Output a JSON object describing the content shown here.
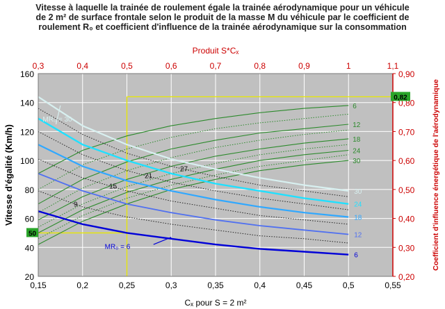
{
  "chart_data": {
    "type": "line",
    "title_lines": [
      "Vitesse à laquelle la trainée de roulement égale la trainée aérodynamique pour un véhicule",
      "de 2 m² de surface frontale selon le produit de la masse M du véhicule par le coefficient de",
      "roulement R₀ et coefficient d'influence de la trainée aérodynamique sur la consommation"
    ],
    "top_axis_title": "Produit S*Cₓ",
    "xlabel": "Cₓ pour S = 2 m²",
    "ylabel": "Vitesse d'égalité (Km/h)",
    "y2label": "Coefficient d'influence énergétique de l'aérodynamique",
    "xlim": [
      0.15,
      0.55
    ],
    "ylim": [
      20,
      160
    ],
    "y2lim": [
      0.2,
      0.9
    ],
    "x_ticks": [
      "0,15",
      "0,2",
      "0,25",
      "0,3",
      "0,35",
      "0,4",
      "0,45",
      "0,5",
      "0,55"
    ],
    "y_ticks": [
      "20",
      "40",
      "60",
      "80",
      "100",
      "120",
      "140",
      "160"
    ],
    "top_ticks": [
      "0,3",
      "0,4",
      "0,5",
      "0,6",
      "0,7",
      "0,8",
      "0,9",
      "1",
      "1,1"
    ],
    "y2_ticks": [
      "0,20",
      "0,30",
      "0,40",
      "0,50",
      "0,60",
      "0,70",
      "0,80",
      "0,90"
    ],
    "grid": true,
    "colors": {
      "plot_bg": "#c0c0c0",
      "grid": "#ffffff",
      "green": "#2c8a2c",
      "red": "#cc0000",
      "marker_yellow": "#e8e800",
      "badge_green": "#2aa52a"
    },
    "speed_series": [
      {
        "name": "MR₀ = 30",
        "label": "30",
        "color": "#d8f0f0",
        "width": 2.2,
        "x": [
          0.15,
          0.2,
          0.25,
          0.3,
          0.35,
          0.4,
          0.45,
          0.5
        ],
        "y": [
          144,
          124,
          111,
          101,
          94,
          88,
          83,
          79
        ]
      },
      {
        "name": "24",
        "label": "24",
        "color": "#20e0ff",
        "width": 2.4,
        "x": [
          0.15,
          0.2,
          0.25,
          0.3,
          0.35,
          0.4,
          0.45,
          0.5
        ],
        "y": [
          129,
          111,
          100,
          91,
          84,
          79,
          74,
          70
        ]
      },
      {
        "name": "18",
        "label": "18",
        "color": "#30a8ff",
        "width": 2.2,
        "x": [
          0.15,
          0.2,
          0.25,
          0.3,
          0.35,
          0.4,
          0.45,
          0.5
        ],
        "y": [
          111,
          96,
          86,
          79,
          73,
          68,
          64,
          61
        ]
      },
      {
        "name": "12",
        "label": "12",
        "color": "#5070f0",
        "width": 1.8,
        "x": [
          0.15,
          0.2,
          0.25,
          0.3,
          0.35,
          0.4,
          0.45,
          0.5
        ],
        "y": [
          91,
          79,
          70,
          64,
          59,
          55,
          52,
          49
        ]
      },
      {
        "name": "MR₀ = 6",
        "label": "6",
        "color": "#0000d8",
        "width": 2.4,
        "x": [
          0.15,
          0.2,
          0.25,
          0.3,
          0.35,
          0.4,
          0.45,
          0.5
        ],
        "y": [
          65,
          56,
          50,
          46,
          42,
          39,
          37,
          35
        ]
      }
    ],
    "dotted_series": [
      {
        "label": "27",
        "x": [
          0.15,
          0.2,
          0.25,
          0.3,
          0.35,
          0.4,
          0.45,
          0.5
        ],
        "y": [
          136,
          118,
          105,
          96,
          89,
          83,
          79,
          75
        ]
      },
      {
        "label": "21",
        "x": [
          0.15,
          0.2,
          0.25,
          0.3,
          0.35,
          0.4,
          0.45,
          0.5
        ],
        "y": [
          120,
          104,
          93,
          85,
          79,
          74,
          70,
          66
        ]
      },
      {
        "label": "15",
        "x": [
          0.15,
          0.2,
          0.25,
          0.3,
          0.35,
          0.4,
          0.45,
          0.5
        ],
        "y": [
          101,
          88,
          79,
          72,
          67,
          62,
          59,
          56
        ]
      },
      {
        "label": "9",
        "x": [
          0.15,
          0.2,
          0.25,
          0.3,
          0.35,
          0.4,
          0.45,
          0.5
        ],
        "y": [
          79,
          68,
          61,
          56,
          52,
          48,
          46,
          43
        ]
      }
    ],
    "influence_series": [
      {
        "label": "6",
        "x": [
          0.15,
          0.2,
          0.25,
          0.3,
          0.35,
          0.4,
          0.45,
          0.5
        ],
        "y2": [
          0.555,
          0.635,
          0.685,
          0.72,
          0.745,
          0.765,
          0.78,
          0.79
        ]
      },
      {
        "label": "12",
        "x": [
          0.15,
          0.2,
          0.25,
          0.3,
          0.35,
          0.4,
          0.45,
          0.5
        ],
        "y2": [
          0.45,
          0.535,
          0.595,
          0.64,
          0.67,
          0.695,
          0.71,
          0.725
        ]
      },
      {
        "label": "18",
        "x": [
          0.15,
          0.2,
          0.25,
          0.3,
          0.35,
          0.4,
          0.45,
          0.5
        ],
        "y2": [
          0.395,
          0.475,
          0.535,
          0.58,
          0.615,
          0.64,
          0.66,
          0.675
        ]
      },
      {
        "label": "24",
        "x": [
          0.15,
          0.2,
          0.25,
          0.3,
          0.35,
          0.4,
          0.45,
          0.5
        ],
        "y2": [
          0.35,
          0.43,
          0.49,
          0.535,
          0.57,
          0.6,
          0.62,
          0.635
        ]
      },
      {
        "label": "30",
        "x": [
          0.15,
          0.2,
          0.25,
          0.3,
          0.35,
          0.4,
          0.45,
          0.5
        ],
        "y2": [
          0.31,
          0.39,
          0.45,
          0.5,
          0.535,
          0.565,
          0.585,
          0.6
        ]
      }
    ],
    "influence_dotted": [
      {
        "x": [
          0.15,
          0.2,
          0.25,
          0.3,
          0.35,
          0.4,
          0.45,
          0.5
        ],
        "y2": [
          0.5,
          0.585,
          0.64,
          0.68,
          0.71,
          0.73,
          0.745,
          0.76
        ]
      },
      {
        "x": [
          0.15,
          0.2,
          0.25,
          0.3,
          0.35,
          0.4,
          0.45,
          0.5
        ],
        "y2": [
          0.42,
          0.505,
          0.565,
          0.61,
          0.645,
          0.67,
          0.69,
          0.705
        ]
      },
      {
        "x": [
          0.15,
          0.2,
          0.25,
          0.3,
          0.35,
          0.4,
          0.45,
          0.5
        ],
        "y2": [
          0.37,
          0.45,
          0.51,
          0.555,
          0.59,
          0.62,
          0.64,
          0.655
        ]
      },
      {
        "x": [
          0.15,
          0.2,
          0.25,
          0.3,
          0.35,
          0.4,
          0.45,
          0.5
        ],
        "y2": [
          0.33,
          0.41,
          0.47,
          0.515,
          0.55,
          0.58,
          0.6,
          0.62
        ]
      }
    ],
    "markers": {
      "x": 0.25,
      "speed": 50,
      "influence": 0.82,
      "speed_label": "50",
      "influence_label": "0,82"
    }
  }
}
